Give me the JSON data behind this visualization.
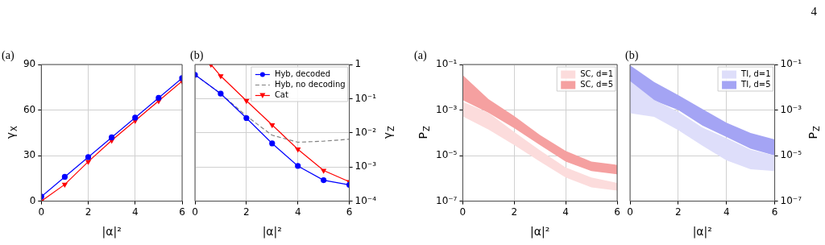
{
  "chart_data": [
    {
      "type": "line",
      "title": "(a)",
      "xlabel": "|α|²",
      "ylabel": "γ$_{X}$",
      "x": [
        0,
        1,
        2,
        3,
        4,
        5,
        6
      ],
      "xlim": [
        0,
        6
      ],
      "xticks": [
        0,
        2,
        4,
        6
      ],
      "ylim": [
        0,
        90
      ],
      "yticks": [
        0,
        30,
        60,
        90
      ],
      "grid": true,
      "series": [
        {
          "color": "#0000ff",
          "marker": "circle",
          "values": [
            3,
            16,
            29,
            42,
            55,
            68,
            81
          ]
        },
        {
          "color": "#ff0000",
          "marker": "triangle",
          "values": [
            0,
            11,
            26,
            40,
            53,
            66,
            79
          ]
        }
      ]
    },
    {
      "type": "line",
      "title": "(b)",
      "xlabel": "|α|²",
      "y2label": "γ$_{Z}$",
      "x": [
        0,
        1,
        2,
        3,
        4,
        5,
        6
      ],
      "xlim": [
        0,
        6
      ],
      "xticks": [
        0,
        2,
        4,
        6
      ],
      "log": "y2",
      "y2lim": [
        0.0001,
        1
      ],
      "y2ticks": [
        {
          "value": 0.0001,
          "label": "10⁻⁴"
        },
        {
          "value": 0.001,
          "label": "10⁻³"
        },
        {
          "value": 0.01,
          "label": "10⁻²"
        },
        {
          "value": 0.1,
          "label": "10⁻¹"
        },
        1
      ],
      "grid": true,
      "legend": "top right",
      "series": [
        {
          "name": "Hyb, decoded",
          "color": "#0000ff",
          "marker": "circle",
          "axis": "y2",
          "values": [
            0.5,
            0.14,
            0.027,
            0.0049,
            0.00107,
            0.00041,
            0.0003
          ]
        },
        {
          "name": "Hyb, no decoding",
          "color": "#808080",
          "marker": "none",
          "line_style": "dashed",
          "axis": "y2",
          "values": [
            0.5,
            0.14,
            0.031,
            0.0085,
            0.0053,
            0.0057,
            0.0065
          ]
        },
        {
          "name": "Cat",
          "color": "#ff0000",
          "marker": "triangle",
          "axis": "y2",
          "x": [
            0.62,
            1,
            2,
            3,
            4,
            5,
            6
          ],
          "values": [
            1,
            0.46,
            0.087,
            0.017,
            0.0033,
            0.00079,
            0.00037
          ]
        }
      ]
    },
    {
      "type": "area",
      "title": "(a)",
      "xlabel": "|α|²",
      "ylabel": "P$_{Z}$",
      "x": [
        0,
        1,
        2,
        3,
        4,
        5,
        6
      ],
      "xlim": [
        0,
        6
      ],
      "xticks": [
        0,
        2,
        4,
        6
      ],
      "log": "y",
      "ylim": [
        1e-07,
        0.1
      ],
      "yticks": [
        {
          "value": 1e-07,
          "label": "10⁻⁷"
        },
        {
          "value": 1e-05,
          "label": "10⁻⁵"
        },
        {
          "value": 0.001,
          "label": "10⁻³"
        },
        {
          "value": 0.1,
          "label": "10⁻¹"
        }
      ],
      "grid": true,
      "legend": "top right",
      "series": [
        {
          "name": "SC, d=1",
          "color": "#fcdcdc",
          "values": [
            null,
            null,
            null,
            null,
            null,
            null,
            null
          ],
          "lower": [
            0.00052,
            0.00014,
            2.9e-05,
            5.5e-06,
            1.1e-06,
            4e-07,
            2.9e-07
          ],
          "upper": [
            0.0023,
            0.00075,
            0.00011,
            1.7e-05,
            3e-06,
            1.1e-06,
            6.3e-07
          ]
        },
        {
          "name": "SC, d=5",
          "color": "#f5a0a0",
          "values": [
            null,
            null,
            null,
            null,
            null,
            null,
            null
          ],
          "lower": [
            0.0027,
            0.00075,
            0.00016,
            2.9e-05,
            5.5e-06,
            2.1e-06,
            1.5e-06
          ],
          "upper": [
            0.034,
            0.003,
            0.00054,
            8e-05,
            1.6e-05,
            5.5e-06,
            3.9e-06
          ]
        }
      ]
    },
    {
      "type": "area",
      "title": "(b)",
      "xlabel": "|α|²",
      "y2label": "P$_{Z}$",
      "x": [
        0,
        1,
        2,
        3,
        4,
        5,
        6
      ],
      "xlim": [
        0,
        6
      ],
      "xticks": [
        0,
        2,
        4,
        6
      ],
      "log": "y2",
      "y2lim": [
        1e-07,
        0.1
      ],
      "y2ticks": [
        {
          "value": 1e-07,
          "label": "10⁻⁷"
        },
        {
          "value": 1e-05,
          "label": "10⁻⁵"
        },
        {
          "value": 0.001,
          "label": "10⁻³"
        },
        {
          "value": 0.1,
          "label": "10⁻¹"
        }
      ],
      "grid": true,
      "legend": "top right",
      "annotations": [
        "4"
      ],
      "series": [
        {
          "name": "TI, d=1",
          "color": "#dedefa",
          "axis": "y2",
          "values": [
            null,
            null,
            null,
            null,
            null,
            null,
            null
          ],
          "lower": [
            0.00073,
            0.0005,
            0.00013,
            2.7e-05,
            6.2e-06,
            2.5e-06,
            2.1e-06
          ],
          "upper": [
            0.019,
            0.0028,
            0.00083,
            0.00017,
            5.8e-05,
            1.8e-05,
            1e-05
          ]
        },
        {
          "name": "TI, d=5",
          "color": "#a4a4f4",
          "axis": "y2",
          "values": [
            null,
            null,
            null,
            null,
            null,
            null,
            null
          ],
          "lower": [
            0.0036,
            0.0026,
            0.001,
            0.00021,
            6.5e-05,
            2e-05,
            1e-05
          ],
          "upper": [
            0.093,
            0.017,
            0.0045,
            0.0011,
            0.00028,
            9.8e-05,
            5.1e-05
          ]
        }
      ]
    }
  ]
}
